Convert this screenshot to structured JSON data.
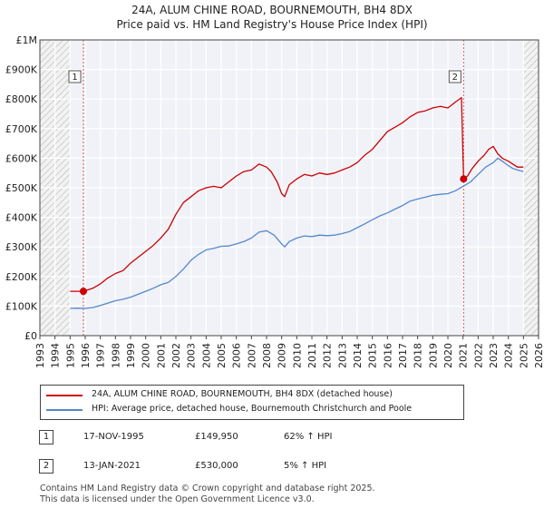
{
  "header": {
    "title": "24A, ALUM CHINE ROAD, BOURNEMOUTH, BH4 8DX",
    "subtitle": "Price paid vs. HM Land Registry's House Price Index (HPI)"
  },
  "chart_data": {
    "type": "line",
    "title": "24A, ALUM CHINE ROAD, BOURNEMOUTH, BH4 8DX",
    "subtitle": "Price paid vs. HM Land Registry's House Price Index (HPI)",
    "xlabel": "",
    "ylabel": "",
    "xlim": [
      1993,
      2026
    ],
    "ylim": [
      0,
      1000000
    ],
    "x_ticks": [
      "1993",
      "1994",
      "1995",
      "1996",
      "1997",
      "1998",
      "1999",
      "2000",
      "2001",
      "2002",
      "2003",
      "2004",
      "2005",
      "2006",
      "2007",
      "2008",
      "2009",
      "2010",
      "2011",
      "2012",
      "2013",
      "2014",
      "2015",
      "2016",
      "2017",
      "2018",
      "2019",
      "2020",
      "2021",
      "2022",
      "2023",
      "2024",
      "2025",
      "2026"
    ],
    "y_ticks": [
      0,
      100000,
      200000,
      300000,
      400000,
      500000,
      600000,
      700000,
      800000,
      900000,
      1000000
    ],
    "y_tick_labels": [
      "£0",
      "£100K",
      "£200K",
      "£300K",
      "£400K",
      "£500K",
      "£600K",
      "£700K",
      "£800K",
      "£900K",
      "£1M"
    ],
    "grid": true,
    "hatched_ranges": [
      [
        1993,
        1995.0
      ],
      [
        2025.0,
        2026
      ]
    ],
    "series": [
      {
        "name": "24A, ALUM CHINE ROAD, BOURNEMOUTH, BH4 8DX (detached house)",
        "color": "#cc0000",
        "x": [
          1995.0,
          1995.88,
          1996.5,
          1997,
          1997.5,
          1998,
          1998.5,
          1999,
          1999.5,
          2000,
          2000.5,
          2001,
          2001.5,
          2002,
          2002.5,
          2003,
          2003.5,
          2004,
          2004.5,
          2005,
          2005.5,
          2006,
          2006.5,
          2007,
          2007.5,
          2008,
          2008.3,
          2008.7,
          2009,
          2009.2,
          2009.5,
          2010,
          2010.5,
          2011,
          2011.5,
          2012,
          2012.5,
          2013,
          2013.5,
          2014,
          2014.5,
          2015,
          2015.5,
          2016,
          2016.5,
          2017,
          2017.5,
          2018,
          2018.5,
          2019,
          2019.5,
          2020,
          2020.5,
          2020.9,
          2021.04,
          2021.3,
          2021.6,
          2022,
          2022.4,
          2022.7,
          2023,
          2023.3,
          2023.6,
          2024,
          2024.3,
          2024.6,
          2025
        ],
        "y": [
          150000,
          149950,
          160000,
          175000,
          195000,
          210000,
          220000,
          245000,
          265000,
          285000,
          305000,
          330000,
          360000,
          410000,
          450000,
          470000,
          490000,
          500000,
          505000,
          500000,
          520000,
          540000,
          555000,
          560000,
          580000,
          570000,
          555000,
          520000,
          480000,
          470000,
          510000,
          530000,
          545000,
          540000,
          550000,
          545000,
          550000,
          560000,
          570000,
          585000,
          610000,
          630000,
          660000,
          690000,
          705000,
          720000,
          740000,
          755000,
          760000,
          770000,
          775000,
          770000,
          790000,
          805000,
          530000,
          540000,
          565000,
          590000,
          610000,
          630000,
          640000,
          615000,
          600000,
          590000,
          580000,
          570000,
          570000
        ]
      },
      {
        "name": "HPI: Average price, detached house, Bournemouth Christchurch and Poole",
        "color": "#5588cc",
        "x": [
          1995.0,
          1995.5,
          1996,
          1996.5,
          1997,
          1997.5,
          1998,
          1998.5,
          1999,
          1999.5,
          2000,
          2000.5,
          2001,
          2001.5,
          2002,
          2002.5,
          2003,
          2003.5,
          2004,
          2004.5,
          2005,
          2005.5,
          2006,
          2006.5,
          2007,
          2007.5,
          2008,
          2008.5,
          2009,
          2009.2,
          2009.5,
          2010,
          2010.5,
          2011,
          2011.5,
          2012,
          2012.5,
          2013,
          2013.5,
          2014,
          2014.5,
          2015,
          2015.5,
          2016,
          2016.5,
          2017,
          2017.5,
          2018,
          2018.5,
          2019,
          2019.5,
          2020,
          2020.5,
          2021,
          2021.5,
          2022,
          2022.5,
          2023,
          2023.3,
          2023.6,
          2024,
          2024.3,
          2024.6,
          2025
        ],
        "y": [
          92000,
          93000,
          92000,
          95000,
          102000,
          110000,
          118000,
          123000,
          130000,
          140000,
          150000,
          160000,
          172000,
          180000,
          200000,
          225000,
          255000,
          275000,
          290000,
          295000,
          302000,
          303000,
          310000,
          318000,
          330000,
          350000,
          355000,
          340000,
          310000,
          300000,
          318000,
          330000,
          337000,
          335000,
          340000,
          338000,
          340000,
          345000,
          352000,
          365000,
          378000,
          392000,
          405000,
          415000,
          428000,
          440000,
          455000,
          462000,
          468000,
          475000,
          478000,
          480000,
          490000,
          505000,
          520000,
          545000,
          570000,
          585000,
          600000,
          590000,
          575000,
          565000,
          560000,
          555000
        ]
      }
    ],
    "annotations": [
      {
        "label": "1",
        "x": 1995.88,
        "y": 149950
      },
      {
        "label": "2",
        "x": 2021.04,
        "y": 530000
      }
    ]
  },
  "legend": {
    "items": [
      {
        "label": "24A, ALUM CHINE ROAD, BOURNEMOUTH, BH4 8DX (detached house)",
        "color": "#cc0000"
      },
      {
        "label": "HPI: Average price, detached house, Bournemouth Christchurch and Poole",
        "color": "#5588cc"
      }
    ]
  },
  "transactions": [
    {
      "num": "1",
      "date": "17-NOV-1995",
      "price": "£149,950",
      "hpi": "62% ↑ HPI"
    },
    {
      "num": "2",
      "date": "13-JAN-2021",
      "price": "£530,000",
      "hpi": "5% ↑ HPI"
    }
  ],
  "footer": {
    "line1": "Contains HM Land Registry data © Crown copyright and database right 2025.",
    "line2": "This data is licensed under the Open Government Licence v3.0."
  }
}
